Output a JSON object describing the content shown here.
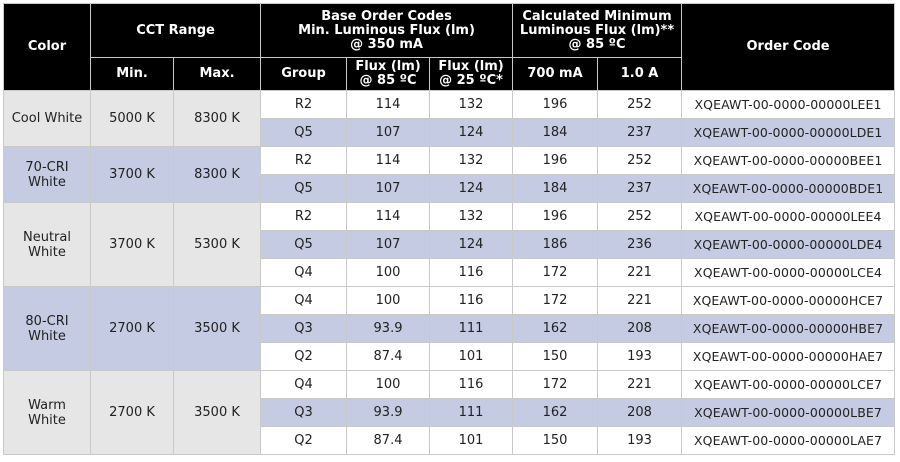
{
  "headers": {
    "color": "Color",
    "cct_range": "CCT Range",
    "base_order_codes": [
      "Base Order Codes",
      "Min. Luminous Flux (lm)",
      "@ 350 mA"
    ],
    "calculated_min": [
      "Calculated Minimum",
      "Luminous Flux (lm)**",
      "@ 85 ºC"
    ],
    "order_code": "Order Code",
    "min": "Min.",
    "max": "Max.",
    "group": "Group",
    "flux85": [
      "Flux (lm)",
      "@ 85 ºC"
    ],
    "flux25": [
      "Flux (lm)",
      "@ 25 ºC*"
    ],
    "ma700": "700 mA",
    "a1": "1.0 A"
  },
  "families": [
    {
      "color": [
        "Cool White"
      ],
      "min": "5000 K",
      "max": "8300 K",
      "rows": [
        {
          "group": "R2",
          "flux85": "114",
          "flux25": "132",
          "ma700": "196",
          "a1": "252",
          "code": "XQEAWT-00-0000-00000LEE1"
        },
        {
          "group": "Q5",
          "flux85": "107",
          "flux25": "124",
          "ma700": "184",
          "a1": "237",
          "code": "XQEAWT-00-0000-00000LDE1"
        }
      ]
    },
    {
      "color": [
        "70-CRI",
        "White"
      ],
      "min": "3700 K",
      "max": "8300 K",
      "rows": [
        {
          "group": "R2",
          "flux85": "114",
          "flux25": "132",
          "ma700": "196",
          "a1": "252",
          "code": "XQEAWT-00-0000-00000BEE1"
        },
        {
          "group": "Q5",
          "flux85": "107",
          "flux25": "124",
          "ma700": "184",
          "a1": "237",
          "code": "XQEAWT-00-0000-00000BDE1"
        }
      ]
    },
    {
      "color": [
        "Neutral",
        "White"
      ],
      "min": "3700 K",
      "max": "5300 K",
      "rows": [
        {
          "group": "R2",
          "flux85": "114",
          "flux25": "132",
          "ma700": "196",
          "a1": "252",
          "code": "XQEAWT-00-0000-00000LEE4"
        },
        {
          "group": "Q5",
          "flux85": "107",
          "flux25": "124",
          "ma700": "186",
          "a1": "236",
          "code": "XQEAWT-00-0000-00000LDE4"
        },
        {
          "group": "Q4",
          "flux85": "100",
          "flux25": "116",
          "ma700": "172",
          "a1": "221",
          "code": "XQEAWT-00-0000-00000LCE4"
        }
      ]
    },
    {
      "color": [
        "80-CRI",
        "White"
      ],
      "min": "2700 K",
      "max": "3500 K",
      "rows": [
        {
          "group": "Q4",
          "flux85": "100",
          "flux25": "116",
          "ma700": "172",
          "a1": "221",
          "code": "XQEAWT-00-0000-00000HCE7"
        },
        {
          "group": "Q3",
          "flux85": "93.9",
          "flux25": "111",
          "ma700": "162",
          "a1": "208",
          "code": "XQEAWT-00-0000-00000HBE7"
        },
        {
          "group": "Q2",
          "flux85": "87.4",
          "flux25": "101",
          "ma700": "150",
          "a1": "193",
          "code": "XQEAWT-00-0000-00000HAE7"
        }
      ]
    },
    {
      "color": [
        "Warm",
        "White"
      ],
      "min": "2700 K",
      "max": "3500 K",
      "rows": [
        {
          "group": "Q4",
          "flux85": "100",
          "flux25": "116",
          "ma700": "172",
          "a1": "221",
          "code": "XQEAWT-00-0000-00000LCE7"
        },
        {
          "group": "Q3",
          "flux85": "93.9",
          "flux25": "111",
          "ma700": "162",
          "a1": "208",
          "code": "XQEAWT-00-0000-00000LBE7"
        },
        {
          "group": "Q2",
          "flux85": "87.4",
          "flux25": "101",
          "ma700": "150",
          "a1": "193",
          "code": "XQEAWT-00-0000-00000LAE7"
        }
      ]
    }
  ],
  "colors": {
    "header_bg": "#000000",
    "header_text": "#ffffff",
    "row_light": "#ffffff",
    "row_blue": "#c5cbe3",
    "cell_gray": "#e6e6e6",
    "border": "#c9c9c9"
  }
}
